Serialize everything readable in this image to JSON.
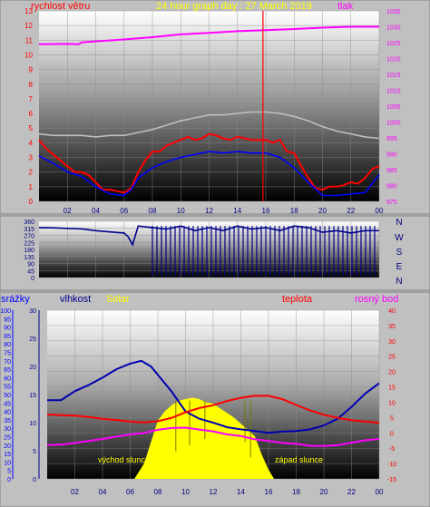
{
  "colors": {
    "background": "#c0c0c0",
    "wind": "#ff0000",
    "gust_gray": "#bdbdbd",
    "pressure": "#ff00ff",
    "direction": "#00008b",
    "humidity": "#0000b0",
    "solar": "#ffff00",
    "temperature": "#ff0000",
    "dewpoint": "#ff00ff",
    "rain_axis": "#0000ff",
    "humidity_axis": "#00008b",
    "temp_axis": "#ff0000"
  },
  "chart_data": [
    {
      "type": "line",
      "title": "24 hour graph day : 27 March 2019",
      "left_axis_label": "rychlost větru",
      "right_axis_label": "tlak",
      "x_ticks": [
        "02",
        "04",
        "06",
        "08",
        "10",
        "12",
        "14",
        "16",
        "18",
        "20",
        "22",
        "00"
      ],
      "left_ticks": [
        "0",
        "1",
        "2",
        "3",
        "4",
        "5",
        "6",
        "7",
        "8",
        "9",
        "10",
        "11",
        "12",
        "13"
      ],
      "right_ticks": [
        "975",
        "980",
        "985",
        "990",
        "995",
        "1000",
        "1005",
        "1010",
        "1015",
        "1020",
        "1025",
        "1030",
        "1035"
      ],
      "ylim_left": [
        0,
        13
      ],
      "ylim_right": [
        975,
        1035
      ],
      "xlim_hours": [
        0,
        24
      ],
      "grid": true,
      "series": [
        {
          "name": "rychlost větru",
          "axis": "left",
          "color": "#ff0000",
          "x": [
            0,
            0.5,
            1,
            1.5,
            2,
            2.5,
            3,
            3.5,
            4,
            4.5,
            5,
            5.5,
            6,
            6.5,
            7,
            7.5,
            8,
            8.5,
            9,
            9.5,
            10,
            10.5,
            11,
            11.5,
            12,
            12.5,
            13,
            13.5,
            14,
            14.5,
            15,
            15.5,
            16,
            16.5,
            17,
            17.5,
            18,
            18.5,
            19,
            19.5,
            20,
            20.5,
            21,
            21.5,
            22,
            22.5,
            23,
            23.5,
            24
          ],
          "y": [
            4.2,
            3.6,
            3.2,
            2.8,
            2.4,
            2.0,
            2.0,
            1.8,
            1.3,
            0.8,
            0.8,
            0.7,
            0.6,
            0.9,
            2.0,
            2.8,
            3.4,
            3.4,
            3.8,
            4.0,
            4.2,
            4.4,
            4.2,
            4.3,
            4.6,
            4.5,
            4.3,
            4.2,
            4.4,
            4.3,
            4.2,
            4.2,
            4.2,
            4.0,
            4.2,
            3.4,
            3.3,
            2.4,
            1.6,
            0.9,
            0.8,
            1.0,
            1.0,
            1.1,
            1.3,
            1.2,
            1.6,
            2.2,
            2.4
          ]
        },
        {
          "name": "",
          "axis": "left",
          "color": "#bdbdbd",
          "x": [
            0,
            1,
            2,
            3,
            4,
            5,
            6,
            7,
            8,
            9,
            10,
            11,
            12,
            13,
            14,
            15,
            16,
            17,
            18,
            19,
            20,
            21,
            22,
            23,
            24
          ],
          "y": [
            4.6,
            4.5,
            4.5,
            4.5,
            4.4,
            4.5,
            4.5,
            4.7,
            4.9,
            5.2,
            5.5,
            5.7,
            5.9,
            5.9,
            6.0,
            6.1,
            6.1,
            6.0,
            5.8,
            5.5,
            5.1,
            4.8,
            4.6,
            4.4,
            4.3
          ]
        },
        {
          "name": "",
          "axis": "left",
          "color": "#0000ff",
          "x": [
            0,
            1,
            2,
            3,
            4,
            5,
            6,
            6.5,
            7,
            8,
            9,
            10,
            11,
            12,
            13,
            14,
            15,
            16,
            17,
            18,
            19,
            20,
            21,
            22,
            23,
            24
          ],
          "y": [
            3.1,
            2.6,
            2.0,
            1.7,
            1.0,
            0.5,
            0.4,
            0.8,
            1.6,
            2.3,
            2.7,
            3.0,
            3.2,
            3.4,
            3.3,
            3.4,
            3.3,
            3.3,
            3.0,
            2.3,
            1.3,
            0.4,
            0.4,
            0.5,
            0.6,
            1.8
          ]
        },
        {
          "name": "tlak",
          "axis": "right",
          "color": "#ff00ff",
          "x": [
            0,
            2,
            2.8,
            3,
            4,
            6,
            8,
            10,
            12,
            14,
            16,
            18,
            20,
            22,
            24
          ],
          "y": [
            1024.5,
            1024.6,
            1024.5,
            1025.1,
            1025.4,
            1026.0,
            1026.7,
            1027.6,
            1028.1,
            1028.6,
            1028.9,
            1029.3,
            1029.7,
            1030.0,
            1030.0
          ]
        }
      ]
    },
    {
      "type": "scatter",
      "left_ticks": [
        "0",
        "45",
        "90",
        "135",
        "180",
        "225",
        "270",
        "315",
        "360"
      ],
      "right_labels": [
        "N",
        "W",
        "S",
        "E",
        "N"
      ],
      "ylim": [
        0,
        360
      ],
      "xlim_hours": [
        0,
        24
      ],
      "series": [
        {
          "name": "",
          "color": "#00008b",
          "x": [
            0,
            1,
            2,
            3,
            4,
            5,
            6,
            6.3,
            6.6,
            7,
            8,
            9,
            10,
            11,
            12,
            13,
            14,
            15,
            16,
            17,
            18,
            19,
            20,
            21,
            22,
            23,
            24
          ],
          "y": [
            320,
            318,
            315,
            312,
            300,
            292,
            285,
            260,
            210,
            330,
            320,
            310,
            330,
            300,
            320,
            300,
            330,
            310,
            320,
            300,
            330,
            320,
            290,
            300,
            285,
            300,
            300
          ]
        }
      ]
    },
    {
      "type": "line",
      "axis_labels": [
        "srážky",
        "vlhkost",
        "Solar",
        "teplota",
        "rosný bod"
      ],
      "rain_ticks": [
        "0",
        "5",
        "10",
        "15",
        "20",
        "25",
        "30",
        "35",
        "40",
        "45",
        "50",
        "55",
        "60",
        "65",
        "70",
        "75",
        "80",
        "85",
        "90",
        "95",
        "100"
      ],
      "humidity_ticks": [
        "0",
        "5",
        "10",
        "15",
        "20",
        "25",
        "30"
      ],
      "temp_ticks": [
        "-15",
        "-10",
        "-5",
        "0",
        "5",
        "10",
        "15",
        "20",
        "25",
        "30",
        "35",
        "40"
      ],
      "ylim_rain": [
        0,
        100
      ],
      "ylim_humidity": [
        0,
        30
      ],
      "ylim_temp": [
        -15,
        40
      ],
      "xlim_hours": [
        0,
        24
      ],
      "annotations": [
        "východ slunce",
        "západ slunce"
      ],
      "series": [
        {
          "name": "vlhkost",
          "axis": "humidity",
          "color": "#0000b0",
          "x": [
            0,
            1,
            2,
            3,
            4,
            5,
            6,
            6.8,
            7.5,
            8,
            9,
            10,
            11,
            12,
            13,
            14,
            15,
            16,
            17,
            18,
            19,
            20,
            21,
            22,
            23,
            24
          ],
          "y": [
            14.0,
            14.0,
            15.6,
            16.7,
            18.0,
            19.5,
            20.5,
            21.0,
            20.0,
            18.5,
            15.5,
            12.0,
            10.7,
            10.0,
            9.2,
            8.8,
            8.5,
            8.2,
            8.4,
            8.5,
            8.8,
            9.5,
            10.7,
            12.8,
            15.2,
            17.0
          ]
        },
        {
          "name": "teplota",
          "axis": "temp",
          "color": "#ff0000",
          "x": [
            0,
            1,
            2,
            3,
            4,
            5,
            6,
            7,
            8,
            9,
            10,
            11,
            12,
            13,
            14,
            15,
            16,
            17,
            18,
            19,
            20,
            21,
            22,
            23,
            24
          ],
          "y": [
            6.0,
            5.8,
            5.6,
            5.2,
            4.6,
            4.2,
            3.7,
            3.4,
            3.8,
            4.9,
            6.7,
            8.1,
            9.0,
            10.4,
            11.4,
            12.1,
            12.1,
            11.0,
            9.1,
            7.3,
            5.9,
            4.9,
            4.1,
            3.7,
            3.3
          ]
        },
        {
          "name": "rosný bod",
          "axis": "temp",
          "color": "#ff00ff",
          "x": [
            0,
            1,
            2,
            3,
            4,
            5,
            6,
            7,
            8,
            9,
            10,
            11,
            12,
            13,
            14,
            15,
            16,
            17,
            18,
            19,
            20,
            21,
            22,
            23,
            24
          ],
          "y": [
            -4.0,
            -3.8,
            -3.3,
            -2.6,
            -2.0,
            -1.2,
            -0.5,
            0.0,
            1.0,
            1.6,
            1.7,
            1.1,
            0.5,
            -0.5,
            -1.0,
            -2.1,
            -2.6,
            -3.3,
            -3.6,
            -4.2,
            -4.3,
            -4.0,
            -3.2,
            -2.4,
            -2.0
          ]
        },
        {
          "name": "Solar",
          "axis": "temp",
          "color": "#ffff00",
          "x": [
            6.3,
            7,
            7.5,
            8,
            8.5,
            9,
            9.5,
            10,
            10.5,
            11,
            11.5,
            12,
            12.5,
            13,
            13.5,
            14,
            14.5,
            15,
            15.5,
            16,
            16.4
          ],
          "y": [
            -15,
            -10,
            -3,
            4,
            7,
            9,
            10.5,
            11,
            11.5,
            11,
            10,
            9.5,
            8,
            6.5,
            5,
            3,
            1,
            -1,
            -7,
            -12,
            -15
          ]
        }
      ]
    }
  ]
}
